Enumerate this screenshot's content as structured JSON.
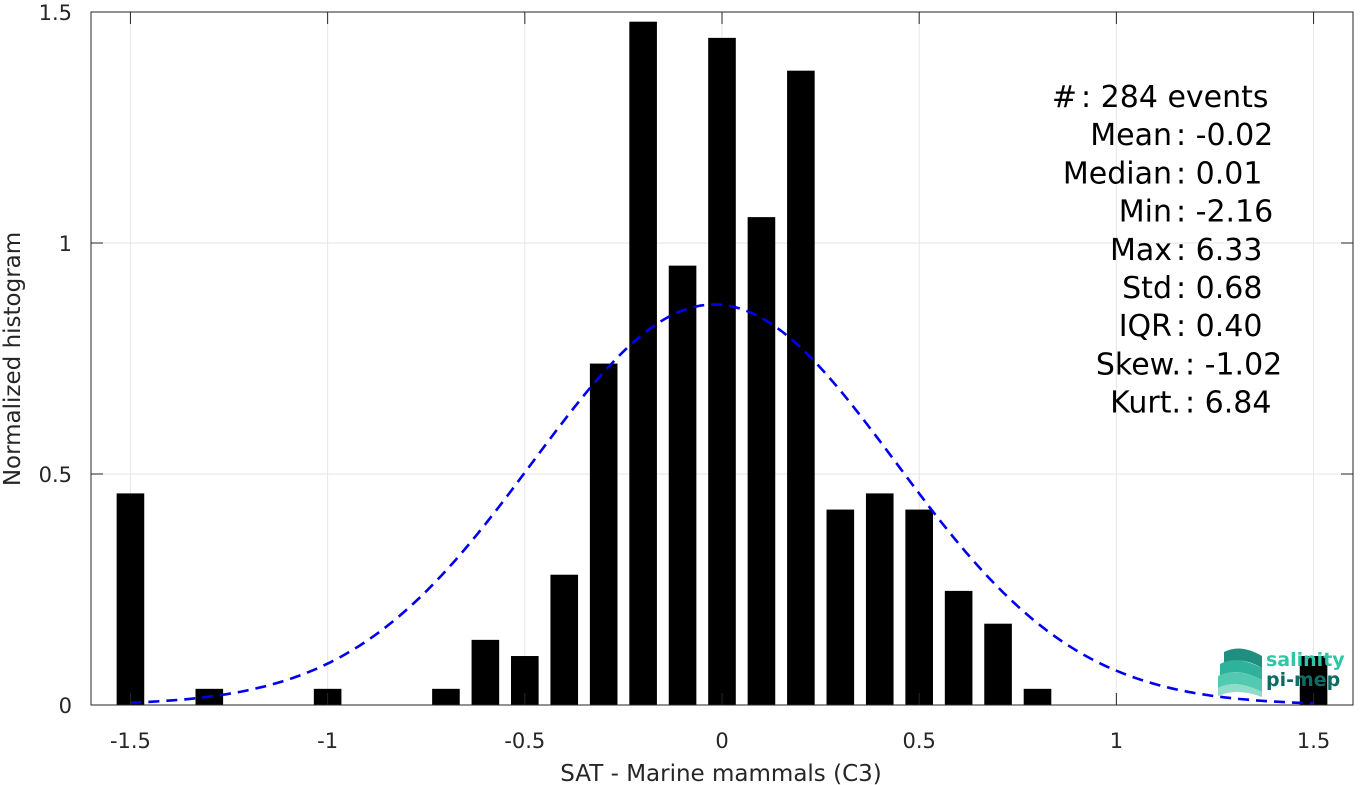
{
  "chart_data": {
    "type": "bar",
    "xlabel": "SAT - Marine mammals (C3)",
    "ylabel": "Normalized histogram",
    "xlim": [
      -1.6,
      1.6
    ],
    "ylim": [
      0,
      1.5
    ],
    "xticks": [
      -1.5,
      -1,
      -0.5,
      0,
      0.5,
      1,
      1.5
    ],
    "xtick_labels": [
      "-1.5",
      "-1",
      "-0.5",
      "0",
      "0.5",
      "1",
      "1.5"
    ],
    "yticks": [
      0,
      0.5,
      1,
      1.5
    ],
    "ytick_labels": [
      "0",
      "0.5",
      "1",
      "1.5"
    ],
    "grid": true,
    "bin_width": 0.1,
    "bar_relative_width": 0.7,
    "bins": [
      {
        "x": -1.5,
        "y": 0.458
      },
      {
        "x": -1.3,
        "y": 0.035
      },
      {
        "x": -1.0,
        "y": 0.035
      },
      {
        "x": -0.7,
        "y": 0.035
      },
      {
        "x": -0.6,
        "y": 0.141
      },
      {
        "x": -0.5,
        "y": 0.106
      },
      {
        "x": -0.4,
        "y": 0.282
      },
      {
        "x": -0.3,
        "y": 0.739
      },
      {
        "x": -0.2,
        "y": 1.479
      },
      {
        "x": -0.1,
        "y": 0.951
      },
      {
        "x": 0.0,
        "y": 1.444
      },
      {
        "x": 0.1,
        "y": 1.056
      },
      {
        "x": 0.2,
        "y": 1.373
      },
      {
        "x": 0.3,
        "y": 0.423
      },
      {
        "x": 0.4,
        "y": 0.458
      },
      {
        "x": 0.5,
        "y": 0.423
      },
      {
        "x": 0.6,
        "y": 0.247
      },
      {
        "x": 0.7,
        "y": 0.176
      },
      {
        "x": 0.8,
        "y": 0.035
      },
      {
        "x": 1.5,
        "y": 0.106
      }
    ],
    "gaussian_fit": {
      "mean": -0.02,
      "std": 0.46,
      "peak": 0.867,
      "x_range": [
        -1.5,
        1.5
      ],
      "color": "#0000ee",
      "style": "dashed"
    },
    "bar_color": "#000000",
    "stats": [
      "#  : 284 events",
      "Mean : -0.02",
      "Median : 0.01",
      "Min : -2.16",
      "Max : 6.33",
      "Std : 0.68",
      "IQR : 0.40",
      "Skew. : -1.02",
      "Kurt. : 6.84"
    ]
  },
  "logo": {
    "line1": "salinity",
    "line2": "pi-mep",
    "color_light": "#2fc6a8",
    "color_dark": "#0f6b63"
  }
}
